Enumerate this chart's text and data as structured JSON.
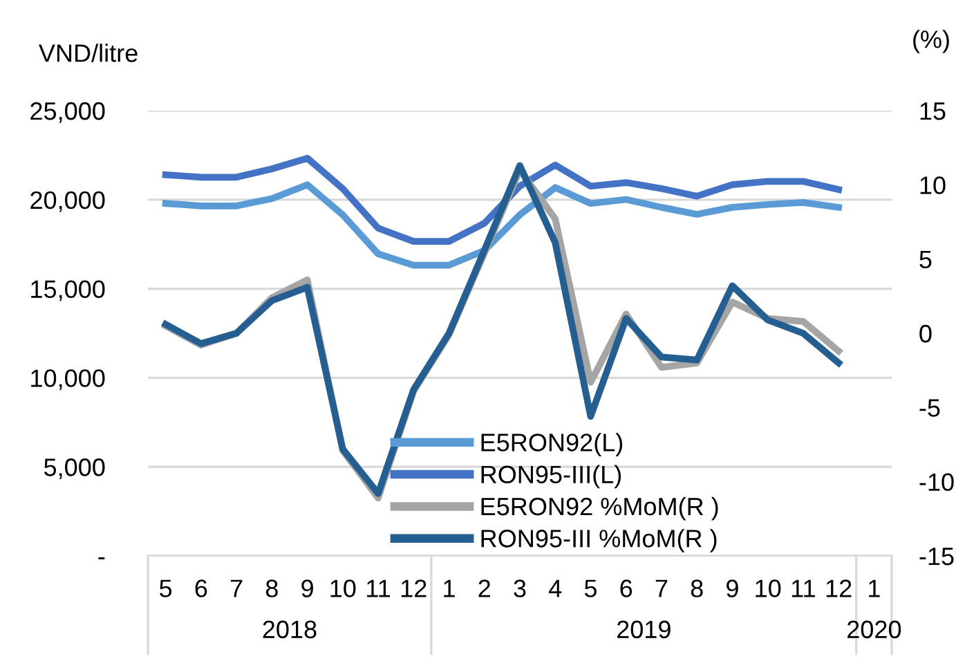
{
  "chart_data": {
    "type": "line",
    "ylabel": "VND/litre",
    "y2label": "(%)",
    "categories": [
      "5",
      "6",
      "7",
      "8",
      "9",
      "10",
      "11",
      "12",
      "1",
      "2",
      "3",
      "4",
      "5",
      "6",
      "7",
      "8",
      "9",
      "10",
      "11",
      "12",
      "1"
    ],
    "annotations": [
      "2018",
      "2019",
      "2020"
    ],
    "series": [
      {
        "name": "E5RON92(L)",
        "color": "#5b9bd5",
        "values": [
          19790,
          19650,
          19650,
          20060,
          20840,
          19150,
          16960,
          16320,
          16320,
          17150,
          19150,
          20680,
          19790,
          20010,
          19570,
          19180,
          19570,
          19730,
          19840,
          19570,
          null
        ]
      },
      {
        "name": "RON95-III(L)",
        "color": "#4472c4",
        "values": [
          21400,
          21260,
          21260,
          21730,
          22330,
          20620,
          18400,
          17660,
          17660,
          18680,
          20760,
          21950,
          20760,
          20960,
          20620,
          20200,
          20840,
          21030,
          21030,
          20570,
          null
        ]
      },
      {
        "name": "E5RON92 %MoM(R )",
        "color": "#a5a5a5",
        "axis": "y2",
        "values": [
          0.5,
          -0.8,
          0.0,
          2.4,
          3.6,
          -7.9,
          -11.1,
          -3.9,
          -0.1,
          5.4,
          11.0,
          7.7,
          -3.3,
          1.3,
          -2.3,
          -2.0,
          2.1,
          1.0,
          0.8,
          -1.2,
          null
        ]
      },
      {
        "name": "RON95-III %MoM(R )",
        "color": "#255e91",
        "axis": "y2",
        "values": [
          0.6,
          -0.7,
          0.0,
          2.2,
          3.1,
          -7.8,
          -10.8,
          -3.8,
          0.0,
          5.6,
          11.3,
          6.1,
          -5.6,
          1.0,
          -1.6,
          -1.8,
          3.2,
          0.9,
          0.0,
          -2.0,
          null
        ]
      }
    ],
    "ylim": [
      0,
      25000
    ],
    "yticks": [
      {
        "value": 0,
        "label": "-"
      },
      {
        "value": 5000,
        "label": "5,000"
      },
      {
        "value": 10000,
        "label": "10,000"
      },
      {
        "value": 15000,
        "label": "15,000"
      },
      {
        "value": 20000,
        "label": "20,000"
      },
      {
        "value": 25000,
        "label": "25,000"
      }
    ],
    "y2lim": [
      -15,
      15
    ],
    "y2ticks": [
      -15,
      -10,
      -5,
      0,
      5,
      10,
      15
    ],
    "grid": "y",
    "legend": "bottom",
    "marker": "none",
    "line_style": "solid"
  }
}
